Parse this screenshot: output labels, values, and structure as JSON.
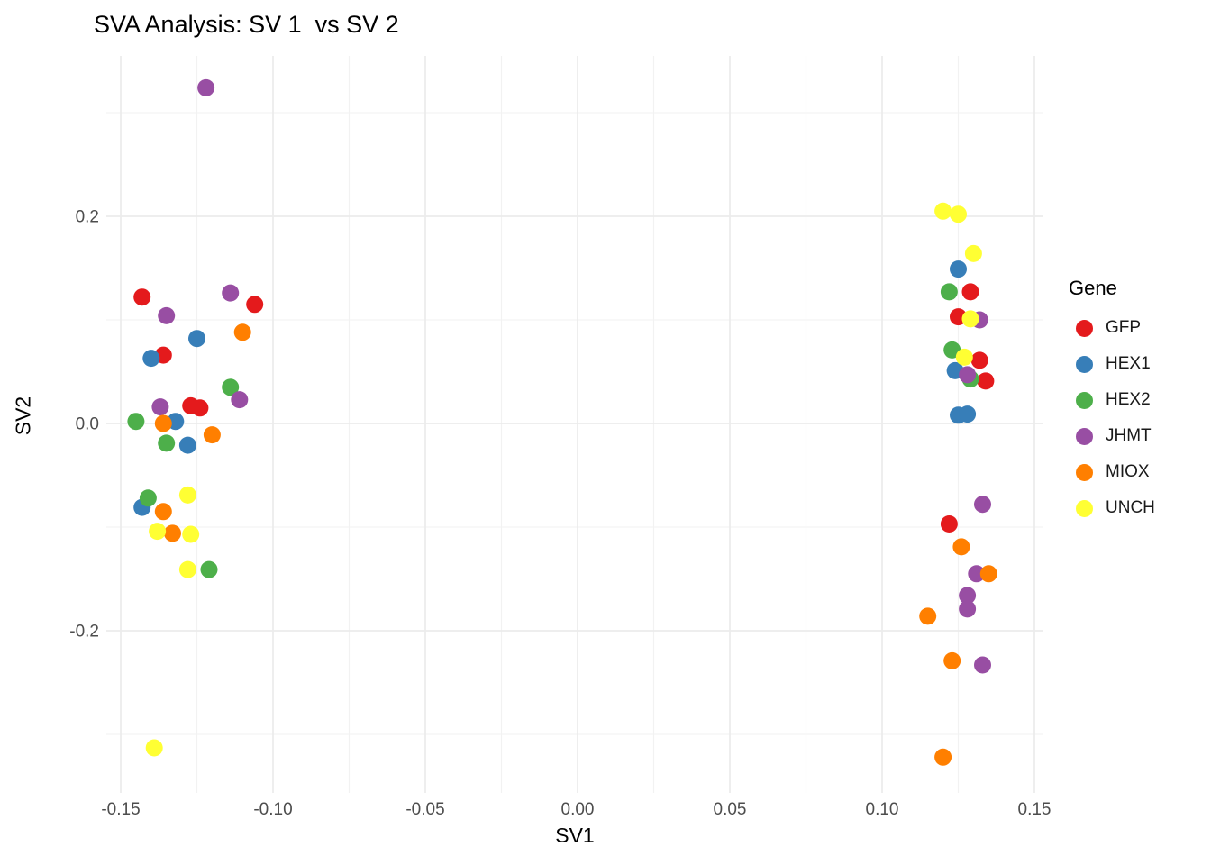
{
  "title": "SVA Analysis: SV 1  vs SV 2",
  "chart_data": {
    "type": "scatter",
    "title": "SVA Analysis: SV 1  vs SV 2",
    "xlabel": "SV1",
    "ylabel": "SV2",
    "xlim": [
      -0.155,
      0.154
    ],
    "ylim": [
      -0.357,
      0.355
    ],
    "grid": true,
    "background": "#ffffff",
    "gridline_color": "#ebebeb",
    "x_ticks": {
      "values": [
        -0.15,
        -0.1,
        -0.05,
        0.0,
        0.05,
        0.1,
        0.15
      ],
      "labels": [
        "-0.15",
        "-0.10",
        "-0.05",
        "0.00",
        "0.05",
        "0.10",
        "0.15"
      ]
    },
    "y_ticks": {
      "values": [
        0.2,
        0.0,
        -0.2
      ],
      "labels": [
        "0.2",
        "0.0",
        "-0.2"
      ]
    },
    "x_minor": [
      -0.125,
      -0.075,
      -0.025,
      0.025,
      0.075,
      0.125
    ],
    "y_minor": [
      0.3,
      0.1,
      -0.1,
      -0.3
    ],
    "legend": {
      "title": "Gene",
      "position": "right"
    },
    "series": [
      {
        "name": "GFP",
        "color": "#E41A1C",
        "points": [
          [
            -0.143,
            0.122
          ],
          [
            -0.136,
            0.066
          ],
          [
            -0.106,
            0.115
          ],
          [
            -0.127,
            0.017
          ],
          [
            -0.124,
            0.015
          ],
          [
            0.129,
            0.127
          ],
          [
            0.125,
            0.103
          ],
          [
            0.132,
            0.061
          ],
          [
            0.134,
            0.041
          ],
          [
            0.122,
            -0.097
          ]
        ]
      },
      {
        "name": "HEX1",
        "color": "#377EB8",
        "points": [
          [
            -0.14,
            0.063
          ],
          [
            -0.125,
            0.082
          ],
          [
            -0.132,
            0.002
          ],
          [
            -0.128,
            -0.021
          ],
          [
            -0.143,
            -0.081
          ],
          [
            0.125,
            0.149
          ],
          [
            0.124,
            0.051
          ],
          [
            0.125,
            0.008
          ],
          [
            0.128,
            0.009
          ]
        ]
      },
      {
        "name": "HEX2",
        "color": "#4DAF4A",
        "points": [
          [
            -0.145,
            0.002
          ],
          [
            -0.135,
            -0.019
          ],
          [
            -0.114,
            0.035
          ],
          [
            -0.141,
            -0.072
          ],
          [
            -0.121,
            -0.141
          ],
          [
            0.122,
            0.127
          ],
          [
            0.123,
            0.071
          ],
          [
            0.129,
            0.043
          ]
        ]
      },
      {
        "name": "JHMT",
        "color": "#984EA3",
        "points": [
          [
            -0.122,
            0.324
          ],
          [
            -0.135,
            0.104
          ],
          [
            -0.114,
            0.126
          ],
          [
            -0.111,
            0.023
          ],
          [
            -0.137,
            0.016
          ],
          [
            0.132,
            0.1
          ],
          [
            0.128,
            0.047
          ],
          [
            0.133,
            -0.078
          ],
          [
            0.131,
            -0.145
          ],
          [
            0.128,
            -0.166
          ],
          [
            0.128,
            -0.179
          ],
          [
            0.133,
            -0.233
          ]
        ]
      },
      {
        "name": "MIOX",
        "color": "#FF7F00",
        "points": [
          [
            -0.11,
            0.088
          ],
          [
            -0.136,
            0.0
          ],
          [
            -0.12,
            -0.011
          ],
          [
            -0.136,
            -0.085
          ],
          [
            -0.133,
            -0.106
          ],
          [
            0.126,
            -0.119
          ],
          [
            0.135,
            -0.145
          ],
          [
            0.115,
            -0.186
          ],
          [
            0.123,
            -0.229
          ],
          [
            0.12,
            -0.322
          ]
        ]
      },
      {
        "name": "UNCH",
        "color": "#FFFF33",
        "points": [
          [
            -0.128,
            -0.069
          ],
          [
            -0.138,
            -0.104
          ],
          [
            -0.127,
            -0.107
          ],
          [
            -0.128,
            -0.141
          ],
          [
            -0.139,
            -0.313
          ],
          [
            0.12,
            0.205
          ],
          [
            0.125,
            0.202
          ],
          [
            0.13,
            0.164
          ],
          [
            0.129,
            0.101
          ],
          [
            0.127,
            0.064
          ]
        ]
      }
    ]
  }
}
